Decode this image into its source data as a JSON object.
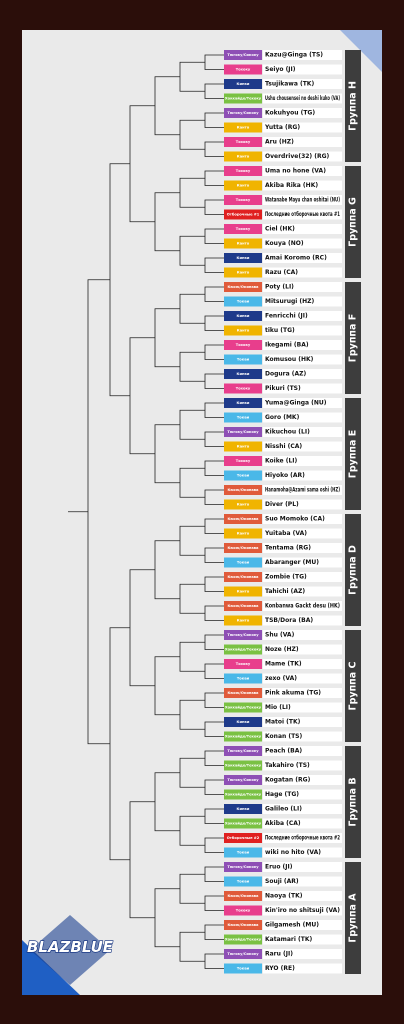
{
  "logo": "BLAZBLUE",
  "groups": [
    {
      "label": "Группа H",
      "entries": [
        {
          "tag": "Тюгоку/Сикоку",
          "name": "Kazu@Ginga (TS)",
          "color": "#8e4fb5"
        },
        {
          "tag": "Тохоку",
          "name": "Seiyo (JI)",
          "color": "#e83e8c"
        },
        {
          "tag": "Кинки",
          "name": "Tsujikawa (TK)",
          "color": "#1e3a8a"
        },
        {
          "tag": "Хоккайдо/Тохоку",
          "name": "Ushu chousensei no deshi kuko (VA)",
          "color": "#7ac143"
        },
        {
          "tag": "Тюгоку/Сикоку",
          "name": "Kokuhyou (TG)",
          "color": "#8e4fb5"
        },
        {
          "tag": "Канто",
          "name": "Yutta (RG)",
          "color": "#f0b400"
        },
        {
          "tag": "Тохоку",
          "name": "Aru (HZ)",
          "color": "#e83e8c"
        },
        {
          "tag": "Канто",
          "name": "Overdrive(32) (RG)",
          "color": "#f0b400"
        }
      ]
    },
    {
      "label": "Группа G",
      "entries": [
        {
          "tag": "Тохоку",
          "name": "Uma no hone (VA)",
          "color": "#e83e8c"
        },
        {
          "tag": "Канто",
          "name": "Akiba Rika (HK)",
          "color": "#f0b400"
        },
        {
          "tag": "Тохоку",
          "name": "Watanabe Mayu chan oshitai (NU)",
          "color": "#e83e8c"
        },
        {
          "tag": "Отборочные #1",
          "name": "Последние отборочные квота #1",
          "color": "#e02020"
        },
        {
          "tag": "Тохоку",
          "name": "Ciel (HK)",
          "color": "#e83e8c"
        },
        {
          "tag": "Канто",
          "name": "Kouya (NO)",
          "color": "#f0b400"
        },
        {
          "tag": "Кинки",
          "name": "Amai Koromo (RC)",
          "color": "#1e3a8a"
        },
        {
          "tag": "Канто",
          "name": "Razu (CA)",
          "color": "#f0b400"
        }
      ]
    },
    {
      "label": "Группа F",
      "entries": [
        {
          "tag": "Кюсю/Окинава",
          "name": "Poty (LI)",
          "color": "#e05a3a"
        },
        {
          "tag": "Токаи",
          "name": "Mitsurugi (HZ)",
          "color": "#4ab8e8"
        },
        {
          "tag": "Кинки",
          "name": "Fenricchi (JI)",
          "color": "#1e3a8a"
        },
        {
          "tag": "Канто",
          "name": "tiku (TG)",
          "color": "#f0b400"
        },
        {
          "tag": "Тохоку",
          "name": "Ikegami (BA)",
          "color": "#e83e8c"
        },
        {
          "tag": "Токаи",
          "name": "Komusou (HK)",
          "color": "#4ab8e8"
        },
        {
          "tag": "Кинки",
          "name": "Dogura (AZ)",
          "color": "#1e3a8a"
        },
        {
          "tag": "Тохоку",
          "name": "Pikuri (TS)",
          "color": "#e83e8c"
        }
      ]
    },
    {
      "label": "Группа E",
      "entries": [
        {
          "tag": "Кинки",
          "name": "Yuma@Ginga (NU)",
          "color": "#1e3a8a"
        },
        {
          "tag": "Токаи",
          "name": "Goro (MK)",
          "color": "#4ab8e8"
        },
        {
          "tag": "Тюгоку/Сикоку",
          "name": "Kikuchou (LI)",
          "color": "#8e4fb5"
        },
        {
          "tag": "Канто",
          "name": "Nisshi (CA)",
          "color": "#f0b400"
        },
        {
          "tag": "Тохоку",
          "name": "Koike (LI)",
          "color": "#e83e8c"
        },
        {
          "tag": "Токаи",
          "name": "Hiyoko (AR)",
          "color": "#4ab8e8"
        },
        {
          "tag": "Кюсю/Окинава",
          "name": "Hanamoha@Azami sama oshi (HZ)",
          "color": "#e05a3a"
        },
        {
          "tag": "Канто",
          "name": "Diver (PL)",
          "color": "#f0b400"
        }
      ]
    },
    {
      "label": "Группа D",
      "entries": [
        {
          "tag": "Кюсю/Окинава",
          "name": "Suo Momoko (CA)",
          "color": "#e05a3a"
        },
        {
          "tag": "Канто",
          "name": "Yuitaba (VA)",
          "color": "#f0b400"
        },
        {
          "tag": "Кюсю/Окинава",
          "name": "Tentama (RG)",
          "color": "#e05a3a"
        },
        {
          "tag": "Токаи",
          "name": "Abaranger (MU)",
          "color": "#4ab8e8"
        },
        {
          "tag": "Кюсю/Окинава",
          "name": "Zombie (TG)",
          "color": "#e05a3a"
        },
        {
          "tag": "Канто",
          "name": "Tahichi (AZ)",
          "color": "#f0b400"
        },
        {
          "tag": "Кюсю/Окинава",
          "name": "Konbanwa Gackt desu (HK)",
          "color": "#e05a3a"
        },
        {
          "tag": "Канто",
          "name": "TSB/Dora (BA)",
          "color": "#f0b400"
        }
      ]
    },
    {
      "label": "Группа C",
      "entries": [
        {
          "tag": "Тюгоку/Сикоку",
          "name": "Shu (VA)",
          "color": "#8e4fb5"
        },
        {
          "tag": "Хоккайдо/Тохоку",
          "name": "Noze (HZ)",
          "color": "#7ac143"
        },
        {
          "tag": "Тохоку",
          "name": "Mame (TK)",
          "color": "#e83e8c"
        },
        {
          "tag": "Токаи",
          "name": "zexo (VA)",
          "color": "#4ab8e8"
        },
        {
          "tag": "Кюсю/Окинава",
          "name": "Pink akuma (TG)",
          "color": "#e05a3a"
        },
        {
          "tag": "Хоккайдо/Тохоку",
          "name": "Mio (LI)",
          "color": "#7ac143"
        },
        {
          "tag": "Кинки",
          "name": "Matoi (TK)",
          "color": "#1e3a8a"
        },
        {
          "tag": "Хоккайдо/Тохоку",
          "name": "Konan (TS)",
          "color": "#7ac143"
        }
      ]
    },
    {
      "label": "Группа B",
      "entries": [
        {
          "tag": "Тюгоку/Сикоку",
          "name": "Peach (BA)",
          "color": "#8e4fb5"
        },
        {
          "tag": "Хоккайдо/Тохоку",
          "name": "Takahiro (TS)",
          "color": "#7ac143"
        },
        {
          "tag": "Тюгоку/Сикоку",
          "name": "Kogatan (RG)",
          "color": "#8e4fb5"
        },
        {
          "tag": "Хоккайдо/Тохоку",
          "name": "Hage (TG)",
          "color": "#7ac143"
        },
        {
          "tag": "Кинки",
          "name": "Galileo (LI)",
          "color": "#1e3a8a"
        },
        {
          "tag": "Хоккайдо/Тохоку",
          "name": "Akiba (CA)",
          "color": "#7ac143"
        },
        {
          "tag": "Отборочные #2",
          "name": "Последние отборочные квота #2",
          "color": "#e02020"
        },
        {
          "tag": "Токаи",
          "name": "wiki no hito (VA)",
          "color": "#4ab8e8"
        }
      ]
    },
    {
      "label": "Группа A",
      "entries": [
        {
          "tag": "Тюгоку/Сикоку",
          "name": "Eruo (JI)",
          "color": "#8e4fb5"
        },
        {
          "tag": "Токаи",
          "name": "Souji (AR)",
          "color": "#4ab8e8"
        },
        {
          "tag": "Кюсю/Окинава",
          "name": "Naoya (TK)",
          "color": "#e05a3a"
        },
        {
          "tag": "Тохоку",
          "name": "Kin'iro no shitsuji (VA)",
          "color": "#e83e8c"
        },
        {
          "tag": "Кюсю/Окинава",
          "name": "Gilgamesh (MU)",
          "color": "#e05a3a"
        },
        {
          "tag": "Хоккайдо/Тохоку",
          "name": "Katamari (TK)",
          "color": "#7ac143"
        },
        {
          "tag": "Тюгоку/Сикоку",
          "name": "Raru (JI)",
          "color": "#8e4fb5"
        },
        {
          "tag": "Токаи",
          "name": "RYO (RE)",
          "color": "#4ab8e8"
        }
      ]
    }
  ]
}
